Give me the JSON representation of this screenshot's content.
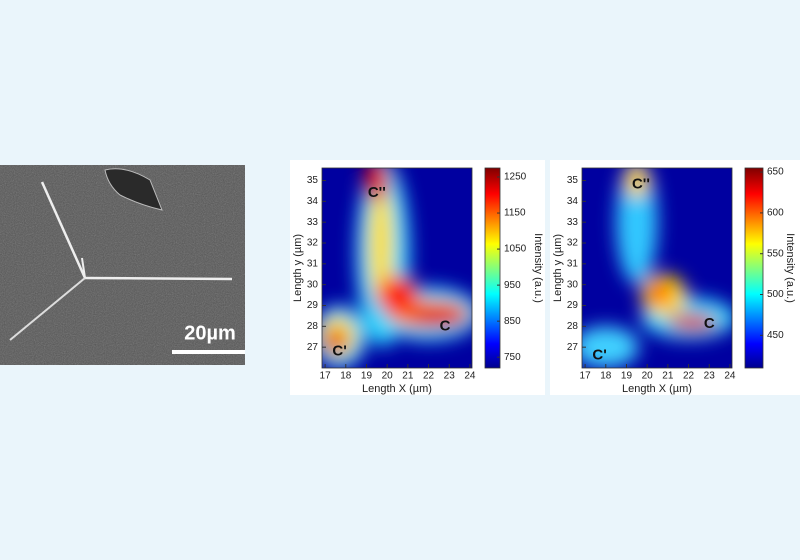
{
  "sem": {
    "scale_bar": "20µm"
  },
  "chart_data": [
    {
      "type": "heatmap",
      "xlabel": "Length X (µm)",
      "ylabel": "Length y (µm)",
      "colorbar_label": "Intensity (a.u.)",
      "xlim": [
        16.85,
        24.1
      ],
      "xticks": [
        17,
        18,
        19,
        20,
        21,
        22,
        23,
        24
      ],
      "ylim": [
        26,
        35.6
      ],
      "yticks": [
        27,
        28,
        29,
        30,
        31,
        32,
        33,
        34,
        35
      ],
      "clim": [
        720,
        1275
      ],
      "cticks": [
        750,
        850,
        950,
        1050,
        1150,
        1250
      ],
      "annotations": [
        "C''",
        "C",
        "C'"
      ]
    },
    {
      "type": "heatmap",
      "xlabel": "Length X (µm)",
      "ylabel": "Length y (µm)",
      "colorbar_label": "Intensity (a.u.)",
      "xlim": [
        16.85,
        24.1
      ],
      "xticks": [
        17,
        18,
        19,
        20,
        21,
        22,
        23,
        24
      ],
      "ylim": [
        26,
        35.6
      ],
      "yticks": [
        27,
        28,
        29,
        30,
        31,
        32,
        33,
        34,
        35
      ],
      "clim": [
        410,
        655
      ],
      "cticks": [
        450,
        500,
        550,
        600,
        650
      ],
      "annotations": [
        "C''",
        "C",
        "C'"
      ]
    }
  ]
}
